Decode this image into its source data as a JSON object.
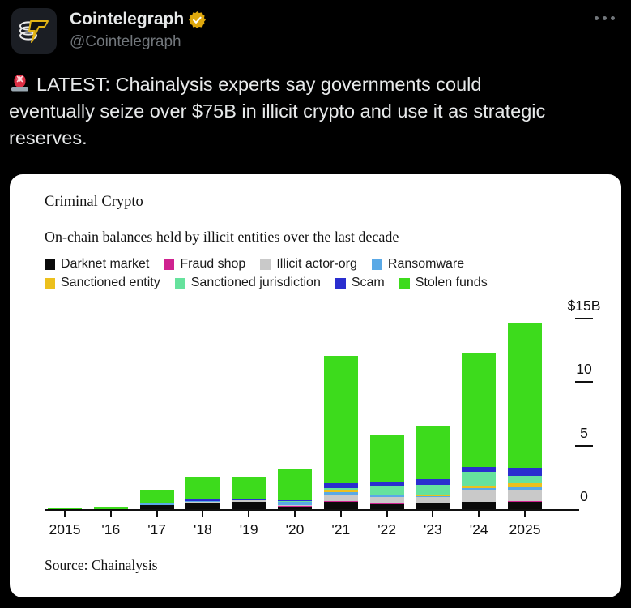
{
  "header": {
    "author": "Cointelegraph",
    "handle": "@Cointelegraph",
    "verified_badge": "gold-check",
    "more_label": "more-options"
  },
  "tweet": {
    "emoji": "🚨",
    "lines": [
      "LATEST: Chainalysis experts say governments could",
      "eventually seize over $75B in illicit crypto and use it as strategic",
      "reserves."
    ]
  },
  "colors": {
    "page_bg": "#000000",
    "tweet_text": "#e7e9ea",
    "handle_gray": "#71767b",
    "badge_gold": "#dfa80d",
    "card_bg": "#ffffff"
  },
  "chart_data": {
    "type": "bar",
    "stacked": true,
    "title": "Criminal Crypto",
    "subtitle": "On-chain balances held by illicit entities over the last decade",
    "source": "Source: Chainalysis",
    "unit": "$B",
    "legend_position": "top",
    "grid": false,
    "ylim": [
      0,
      15.5
    ],
    "categories": [
      "2015",
      "'16",
      "'17",
      "'18",
      "'19",
      "'20",
      "'21",
      "'22",
      "'23",
      "'24",
      "2025"
    ],
    "yticks": [
      {
        "label": "$15B",
        "value": 15,
        "dash": true
      },
      {
        "label": "10",
        "value": 10,
        "dash": true
      },
      {
        "label": "5",
        "value": 5,
        "dash": true
      },
      {
        "label": "0",
        "value": 0,
        "dash": false
      }
    ],
    "series": [
      {
        "name": "Darknet market",
        "color": "#0a0a0a",
        "values": [
          0.02,
          0.03,
          0.35,
          0.5,
          0.6,
          0.17,
          0.55,
          0.4,
          0.45,
          0.55,
          0.6
        ]
      },
      {
        "name": "Fraud shop",
        "color": "#cf2290",
        "values": [
          0,
          0,
          0,
          0,
          0,
          0.07,
          0.12,
          0.03,
          0.03,
          0.03,
          0.05
        ]
      },
      {
        "name": "Illicit actor-org",
        "color": "#c9c9c9",
        "values": [
          0,
          0,
          0,
          0.06,
          0.1,
          0.05,
          0.45,
          0.5,
          0.5,
          0.9,
          0.9
        ]
      },
      {
        "name": "Ransomware",
        "color": "#5aa9e6",
        "values": [
          0,
          0,
          0.1,
          0.08,
          0,
          0.26,
          0.25,
          0.15,
          0.05,
          0.15,
          0.2
        ]
      },
      {
        "name": "Sanctioned entity",
        "color": "#ecc01d",
        "values": [
          0,
          0,
          0,
          0,
          0,
          0,
          0.1,
          0.05,
          0.12,
          0.25,
          0.3
        ]
      },
      {
        "name": "Sanctioned jurisdiction",
        "color": "#66e29d",
        "values": [
          0,
          0,
          0,
          0,
          0,
          0.1,
          0.2,
          0.7,
          0.75,
          1.05,
          0.55
        ]
      },
      {
        "name": "Scam",
        "color": "#2a2ecf",
        "values": [
          0,
          0,
          0,
          0.12,
          0.05,
          0.05,
          0.4,
          0.27,
          0.45,
          0.4,
          0.65
        ]
      },
      {
        "name": "Stolen funds",
        "color": "#3ddb1c",
        "values": [
          0.03,
          0.12,
          1.0,
          1.8,
          1.75,
          2.4,
          10.0,
          3.8,
          4.2,
          9.0,
          11.4
        ]
      }
    ],
    "totals": [
      0.05,
      0.15,
      1.45,
      2.56,
      2.5,
      3.1,
      12.07,
      5.9,
      6.55,
      12.33,
      14.65
    ]
  }
}
